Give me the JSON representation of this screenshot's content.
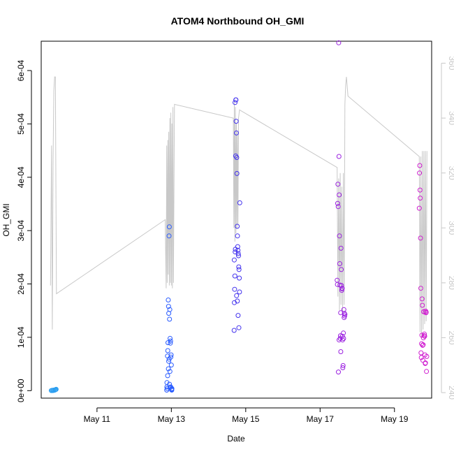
{
  "chart_data": {
    "type": "scatter",
    "title": "ATOM4 Northbound OH_GMI",
    "xlabel": "Date",
    "ylabel": "OH_GMI",
    "xlim": [
      "2016-05-09T12:00",
      "2016-05-20T00:00"
    ],
    "x_ticks": [
      {
        "date": "2016-05-11",
        "label": "May 11"
      },
      {
        "date": "2016-05-13",
        "label": "May 13"
      },
      {
        "date": "2016-05-15",
        "label": "May 15"
      },
      {
        "date": "2016-05-17",
        "label": "May 17"
      },
      {
        "date": "2016-05-19",
        "label": "May 19"
      }
    ],
    "ylim": [
      -1.4e-05,
      0.000655
    ],
    "y_ticks": [
      {
        "value": 0,
        "label": "0e+00"
      },
      {
        "value": 0.0001,
        "label": "1e-04"
      },
      {
        "value": 0.0002,
        "label": "2e-04"
      },
      {
        "value": 0.0003,
        "label": "3e-04"
      },
      {
        "value": 0.0004,
        "label": "4e-04"
      },
      {
        "value": 0.0005,
        "label": "5e-04"
      },
      {
        "value": 0.0006,
        "label": "6e-04"
      }
    ],
    "y2lim": [
      238,
      368
    ],
    "y2_ticks": [
      {
        "value": 240,
        "label": "240"
      },
      {
        "value": 260,
        "label": "260"
      },
      {
        "value": 280,
        "label": "280"
      },
      {
        "value": 300,
        "label": "300"
      },
      {
        "value": 320,
        "label": "320"
      },
      {
        "value": 340,
        "label": "340"
      },
      {
        "value": 360,
        "label": "360"
      }
    ],
    "line_color": "#c8c8c8",
    "grid": false,
    "legend": "none",
    "line_series": {
      "x": [
        "2016-05-09T18:00",
        "2016-05-09T18:40",
        "2016-05-09T19:10",
        "2016-05-09T19:40",
        "2016-05-09T20:10",
        "2016-05-09T20:40",
        "2016-05-09T21:10",
        "2016-05-09T21:50",
        "2016-05-12T20:00",
        "2016-05-12T20:40",
        "2016-05-12T21:00",
        "2016-05-12T21:20",
        "2016-05-12T21:40",
        "2016-05-12T22:00",
        "2016-05-12T22:20",
        "2016-05-12T22:40",
        "2016-05-12T23:00",
        "2016-05-12T23:20",
        "2016-05-12T23:40",
        "2016-05-13T00:00",
        "2016-05-13T00:20",
        "2016-05-13T00:40",
        "2016-05-13T01:00",
        "2016-05-13T01:20",
        "2016-05-13T02:00",
        "2016-05-14T16:00",
        "2016-05-14T16:20",
        "2016-05-14T16:40",
        "2016-05-14T17:00",
        "2016-05-14T17:20",
        "2016-05-14T17:40",
        "2016-05-14T18:00",
        "2016-05-14T18:20",
        "2016-05-14T18:40",
        "2016-05-14T19:00",
        "2016-05-14T19:20",
        "2016-05-14T20:00",
        "2016-05-17T11:00",
        "2016-05-17T11:30",
        "2016-05-17T12:00",
        "2016-05-17T12:30",
        "2016-05-17T13:00",
        "2016-05-17T13:30",
        "2016-05-17T14:00",
        "2016-05-17T14:30",
        "2016-05-17T15:00",
        "2016-05-17T15:30",
        "2016-05-17T16:00",
        "2016-05-17T16:30",
        "2016-05-17T17:00",
        "2016-05-17T18:00",
        "2016-05-19T16:00",
        "2016-05-19T16:30",
        "2016-05-19T17:00",
        "2016-05-19T17:30",
        "2016-05-19T18:00",
        "2016-05-19T18:30",
        "2016-05-19T19:00",
        "2016-05-19T19:30",
        "2016-05-19T20:00",
        "2016-05-19T20:30",
        "2016-05-19T21:00"
      ],
      "y": [
        279,
        330,
        263,
        325,
        350,
        355,
        355,
        276,
        303,
        278,
        330,
        280,
        332,
        283,
        335,
        279,
        340,
        280,
        342,
        279,
        338,
        278,
        344,
        280,
        345,
        340,
        300,
        346,
        295,
        344,
        298,
        338,
        300,
        335,
        301,
        340,
        343,
        322,
        275,
        318,
        270,
        320,
        272,
        315,
        268,
        320,
        272,
        345,
        352,
        355,
        348,
        326,
        262,
        326,
        260,
        328,
        263,
        328,
        265,
        328,
        266,
        328
      ]
    },
    "series": [
      {
        "color": "#2d9ff0",
        "x": [
          "2016-05-09T18:30",
          "2016-05-09T19:00",
          "2016-05-09T19:30",
          "2016-05-09T20:00",
          "2016-05-09T20:30",
          "2016-05-09T21:00",
          "2016-05-09T21:20",
          "2016-05-09T21:40",
          "2016-05-09T20:45",
          "2016-05-09T19:45"
        ],
        "y": [
          2e-07,
          5e-07,
          1e-07,
          1e-06,
          8e-07,
          1.5e-06,
          2e-06,
          2.5e-06,
          1.2e-06,
          4e-07
        ]
      },
      {
        "color": "#2a5cff",
        "x": [
          "2016-05-12T21:00",
          "2016-05-12T21:10",
          "2016-05-12T21:20",
          "2016-05-12T21:30",
          "2016-05-12T21:40",
          "2016-05-12T21:50",
          "2016-05-12T22:00",
          "2016-05-12T22:10",
          "2016-05-12T22:20",
          "2016-05-12T22:30",
          "2016-05-12T22:40",
          "2016-05-12T22:50",
          "2016-05-12T23:00",
          "2016-05-12T23:10",
          "2016-05-12T23:20",
          "2016-05-12T23:30",
          "2016-05-12T23:40",
          "2016-05-12T23:50",
          "2016-05-13T00:00",
          "2016-05-13T00:10",
          "2016-05-13T00:20",
          "2016-05-12T21:05",
          "2016-05-12T21:35",
          "2016-05-12T22:05",
          "2016-05-12T22:35",
          "2016-05-12T23:05",
          "2016-05-12T23:35",
          "2016-05-13T00:05",
          "2016-05-13T00:15",
          "2016-05-12T22:15",
          "2016-05-12T23:15",
          "2016-05-12T22:45"
        ],
        "y": [
          1e-06,
          1.5e-05,
          4e-06,
          6.5e-05,
          7.5e-05,
          9e-05,
          0.00017,
          0.000158,
          0.000145,
          0.00029,
          0.000307,
          0.000134,
          0.000152,
          9.8e-05,
          8.9e-05,
          9.3e-05,
          6.3e-05,
          6.7e-05,
          4.8e-05,
          3e-06,
          4e-06,
          7e-06,
          2.8e-05,
          4.1e-05,
          5.9e-05,
          3.6e-05,
          7e-06,
          2e-06,
          1e-06,
          5.5e-05,
          6e-06,
          1.2e-05
        ]
      },
      {
        "color": "#4433ee",
        "x": [
          "2016-05-14T16:30",
          "2016-05-14T16:40",
          "2016-05-14T16:50",
          "2016-05-14T17:00",
          "2016-05-14T17:10",
          "2016-05-14T17:20",
          "2016-05-14T17:30",
          "2016-05-14T17:40",
          "2016-05-14T17:50",
          "2016-05-14T18:00",
          "2016-05-14T18:10",
          "2016-05-14T18:20",
          "2016-05-14T18:30",
          "2016-05-14T18:40",
          "2016-05-14T18:50",
          "2016-05-14T19:00",
          "2016-05-14T19:10",
          "2016-05-14T19:20",
          "2016-05-14T19:30",
          "2016-05-14T19:40",
          "2016-05-14T19:50",
          "2016-05-14T20:00",
          "2016-05-14T16:35",
          "2016-05-14T17:05",
          "2016-05-14T17:35",
          "2016-05-14T18:05",
          "2016-05-14T18:35",
          "2016-05-14T19:05",
          "2016-05-14T19:35",
          "2016-05-14T20:10"
        ],
        "y": [
          0.000113,
          0.000165,
          0.00019,
          0.000215,
          0.00026,
          0.000265,
          0.00044,
          0.000545,
          0.000505,
          0.000483,
          0.000437,
          0.000407,
          0.000308,
          0.00029,
          0.00027,
          0.000263,
          0.000257,
          0.000253,
          0.000232,
          0.000227,
          0.000211,
          0.000185,
          0.000245,
          0.00054,
          0.000545,
          0.000178,
          0.000168,
          0.000141,
          0.000118,
          0.000352
        ]
      },
      {
        "color": "#9b22e0",
        "x": [
          "2016-05-17T11:00",
          "2016-05-17T11:10",
          "2016-05-17T11:20",
          "2016-05-17T11:30",
          "2016-05-17T11:40",
          "2016-05-17T11:50",
          "2016-05-17T12:00",
          "2016-05-17T12:10",
          "2016-05-17T12:20",
          "2016-05-17T12:30",
          "2016-05-17T12:40",
          "2016-05-17T12:50",
          "2016-05-17T13:00",
          "2016-05-17T13:10",
          "2016-05-17T13:20",
          "2016-05-17T13:30",
          "2016-05-17T13:40",
          "2016-05-17T13:50",
          "2016-05-17T14:00",
          "2016-05-17T14:10",
          "2016-05-17T14:20",
          "2016-05-17T14:30",
          "2016-05-17T14:40",
          "2016-05-17T14:50",
          "2016-05-17T15:00",
          "2016-05-17T15:10",
          "2016-05-17T15:20",
          "2016-05-17T15:30",
          "2016-05-17T15:40",
          "2016-05-17T15:50",
          "2016-05-17T16:00",
          "2016-05-17T12:15",
          "2016-05-17T13:15",
          "2016-05-17T14:15"
        ],
        "y": [
          0.000207,
          0.000199,
          0.000351,
          0.000387,
          0.000345,
          3.5e-05,
          0.000652,
          0.000439,
          0.000367,
          0.00029,
          0.000238,
          0.000198,
          9.8e-05,
          0.000103,
          7.3e-05,
          0.000267,
          0.000227,
          0.000197,
          0.000188,
          0.000191,
          0.000102,
          9.5e-05,
          4.3e-05,
          4.7e-05,
          0.000108,
          9.8e-05,
          0.000152,
          0.000137,
          0.000145,
          0.00014,
          0.000143,
          9.5e-05,
          0.000146,
          0.000192
        ]
      },
      {
        "color": "#d01ed0",
        "x": [
          "2016-05-19T16:00",
          "2016-05-19T16:10",
          "2016-05-19T16:20",
          "2016-05-19T16:30",
          "2016-05-19T16:40",
          "2016-05-19T16:50",
          "2016-05-19T17:00",
          "2016-05-19T17:10",
          "2016-05-19T17:20",
          "2016-05-19T17:30",
          "2016-05-19T17:40",
          "2016-05-19T17:50",
          "2016-05-19T18:00",
          "2016-05-19T18:10",
          "2016-05-19T18:20",
          "2016-05-19T18:30",
          "2016-05-19T18:40",
          "2016-05-19T18:50",
          "2016-05-19T19:00",
          "2016-05-19T19:10",
          "2016-05-19T19:20",
          "2016-05-19T19:30",
          "2016-05-19T19:40",
          "2016-05-19T19:50",
          "2016-05-19T20:00",
          "2016-05-19T20:10",
          "2016-05-19T20:20",
          "2016-05-19T20:30",
          "2016-05-19T20:40",
          "2016-05-19T20:50"
        ],
        "y": [
          0.000342,
          0.000408,
          0.000422,
          0.000376,
          0.000361,
          0.000286,
          0.000192,
          7.1e-05,
          6.2e-05,
          8.8e-05,
          0.000104,
          0.000172,
          0.00016,
          8.5e-05,
          5.7e-05,
          8.6e-05,
          9.9e-05,
          0.000148,
          0.000148,
          0.000103,
          0.000106,
          0.000102,
          6.7e-05,
          5.1e-05,
          5.2e-05,
          0.000149,
          0.000146,
          0.000147,
          3.6e-05,
          6.4e-05
        ]
      }
    ]
  }
}
